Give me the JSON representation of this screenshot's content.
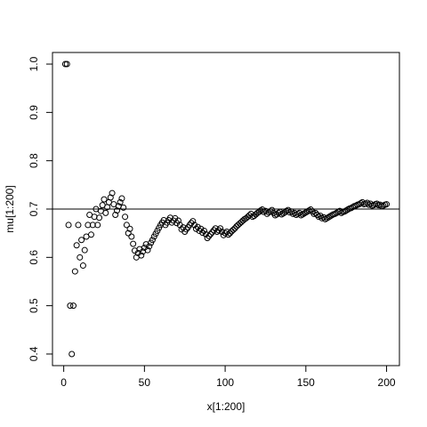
{
  "chart_data": {
    "type": "scatter",
    "xlabel": "x[1:200]",
    "ylabel": "mu[1:200]",
    "x": [
      1,
      2,
      3,
      4,
      5,
      6,
      7,
      8,
      9,
      10,
      11,
      12,
      13,
      14,
      15,
      16,
      17,
      18,
      19,
      20,
      21,
      22,
      23,
      24,
      25,
      26,
      27,
      28,
      29,
      30,
      31,
      32,
      33,
      34,
      35,
      36,
      37,
      38,
      39,
      40,
      41,
      42,
      43,
      44,
      45,
      46,
      47,
      48,
      49,
      50,
      51,
      52,
      53,
      54,
      55,
      56,
      57,
      58,
      59,
      60,
      61,
      62,
      63,
      64,
      65,
      66,
      67,
      68,
      69,
      70,
      71,
      72,
      73,
      74,
      75,
      76,
      77,
      78,
      79,
      80,
      81,
      82,
      83,
      84,
      85,
      86,
      87,
      88,
      89,
      90,
      91,
      92,
      93,
      94,
      95,
      96,
      97,
      98,
      99,
      100,
      101,
      102,
      103,
      104,
      105,
      106,
      107,
      108,
      109,
      110,
      111,
      112,
      113,
      114,
      115,
      116,
      117,
      118,
      119,
      120,
      121,
      122,
      123,
      124,
      125,
      126,
      127,
      128,
      129,
      130,
      131,
      132,
      133,
      134,
      135,
      136,
      137,
      138,
      139,
      140,
      141,
      142,
      143,
      144,
      145,
      146,
      147,
      148,
      149,
      150,
      151,
      152,
      153,
      154,
      155,
      156,
      157,
      158,
      159,
      160,
      161,
      162,
      163,
      164,
      165,
      166,
      167,
      168,
      169,
      170,
      171,
      172,
      173,
      174,
      175,
      176,
      177,
      178,
      179,
      180,
      181,
      182,
      183,
      184,
      185,
      186,
      187,
      188,
      189,
      190,
      191,
      192,
      193,
      194,
      195,
      196,
      197,
      198,
      199,
      200
    ],
    "values": [
      1,
      1,
      0.667,
      0.5,
      0.4,
      0.5,
      0.571,
      0.625,
      0.667,
      0.6,
      0.636,
      0.583,
      0.615,
      0.643,
      0.667,
      0.688,
      0.647,
      0.667,
      0.684,
      0.7,
      0.667,
      0.682,
      0.696,
      0.708,
      0.72,
      0.692,
      0.704,
      0.714,
      0.724,
      0.733,
      0.71,
      0.688,
      0.697,
      0.706,
      0.714,
      0.722,
      0.703,
      0.684,
      0.667,
      0.65,
      0.659,
      0.643,
      0.628,
      0.614,
      0.6,
      0.609,
      0.617,
      0.604,
      0.612,
      0.62,
      0.627,
      0.615,
      0.623,
      0.63,
      0.636,
      0.643,
      0.649,
      0.655,
      0.661,
      0.667,
      0.672,
      0.677,
      0.667,
      0.672,
      0.677,
      0.682,
      0.672,
      0.676,
      0.681,
      0.671,
      0.676,
      0.667,
      0.658,
      0.662,
      0.653,
      0.658,
      0.662,
      0.667,
      0.671,
      0.675,
      0.667,
      0.659,
      0.663,
      0.655,
      0.659,
      0.651,
      0.655,
      0.648,
      0.64,
      0.644,
      0.648,
      0.652,
      0.656,
      0.66,
      0.653,
      0.656,
      0.66,
      0.653,
      0.646,
      0.65,
      0.653,
      0.647,
      0.65,
      0.654,
      0.657,
      0.66,
      0.664,
      0.667,
      0.67,
      0.673,
      0.676,
      0.679,
      0.681,
      0.684,
      0.687,
      0.69,
      0.684,
      0.686,
      0.689,
      0.692,
      0.694,
      0.697,
      0.699,
      0.694,
      0.696,
      0.69,
      0.693,
      0.695,
      0.698,
      0.692,
      0.687,
      0.689,
      0.692,
      0.694,
      0.689,
      0.691,
      0.693,
      0.696,
      0.698,
      0.693,
      0.695,
      0.69,
      0.692,
      0.688,
      0.69,
      0.692,
      0.687,
      0.689,
      0.691,
      0.693,
      0.695,
      0.697,
      0.699,
      0.695,
      0.69,
      0.692,
      0.688,
      0.684,
      0.686,
      0.681,
      0.683,
      0.679,
      0.681,
      0.683,
      0.685,
      0.687,
      0.689,
      0.69,
      0.692,
      0.694,
      0.696,
      0.692,
      0.694,
      0.695,
      0.697,
      0.699,
      0.701,
      0.702,
      0.704,
      0.706,
      0.707,
      0.709,
      0.71,
      0.712,
      0.714,
      0.71,
      0.711,
      0.713,
      0.709,
      0.711,
      0.707,
      0.708,
      0.71,
      0.711,
      0.708,
      0.709,
      0.706,
      0.707,
      0.709,
      0.71
    ],
    "hline": 0.7,
    "xlim": [
      -6.96,
      207.96
    ],
    "xticks": [
      0,
      50,
      100,
      150,
      200
    ],
    "ylim": [
      0.376,
      1.024
    ],
    "yticks": [
      0.4,
      0.5,
      0.6,
      0.7,
      0.8,
      0.9,
      {
        "value": 1,
        "label": "1.0"
      }
    ],
    "color": "#000000"
  }
}
